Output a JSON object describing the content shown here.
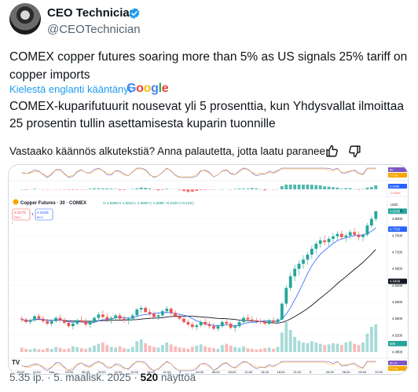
{
  "author": {
    "name": "CEO Technician",
    "handle": "@CEOTechnician"
  },
  "tweet": {
    "text": "COMEX copper futures soaring more than 5% as US signals 25% tariff on copper imports",
    "translated_label": "Kielestä englanti kääntänyt",
    "translator": "Google",
    "translation": "COMEX-kuparifutuurit nousevat yli 5 prosenttia, kun Yhdysvallat ilmoittaa 25 prosentin tullin asettamisesta kuparin tuonnille",
    "feedback_prompt": "Vastaako käännös alkutekstiä? Anna palautetta, jotta laatu paranee:"
  },
  "footer": {
    "time": "5.35 ip.",
    "sep1": " · ",
    "date": "5. maalisk. 2025",
    "sep2": " · ",
    "views": "520",
    "views_label": " näyttöä"
  },
  "icons": {
    "verified": "verified-badge-icon",
    "thumb_up": "thumbs-up-icon",
    "thumb_down": "thumbs-down-icon",
    "tradingview": "tradingview-logo"
  },
  "colors": {
    "link": "#1d9bf0",
    "bull": "#26a69a",
    "bear": "#ef5350",
    "ma_fast": "#2962ff",
    "ma_slow": "#131722"
  },
  "chart": {
    "symbol_title": "Copper Futures · 30 · COMEX",
    "ohlc": "O 4.5865  H 4.5910  L 4.5860  C 4.5885  +0.0100 (+0.21%)",
    "sell_price": "4.8175",
    "sell_label": "SELL",
    "buy_price": "4.8185",
    "buy_label": "BUY",
    "qty": "1",
    "currency": "USD",
    "scale_mode": "lb",
    "price_ticks": [
      "4.8000",
      "4.7600",
      "4.7200",
      "4.6800",
      "4.6400",
      "4.6000",
      "4.5600",
      "4.5200",
      "4.4800"
    ],
    "last_price_tag": "4.8185",
    "ma_fast_tag": "4.7753",
    "ma_slow_tag": "4.6499",
    "volume_tag": "688",
    "top_indicator_tags": [
      "80",
      "77.06"
    ],
    "macd_tags": [
      "0.0458",
      "-0.0005"
    ],
    "bottom_indicator_tags": [
      "80.31",
      "77.09"
    ],
    "time_labels": [
      "18:00",
      "21:00",
      "Mar",
      "03:00",
      "06:00",
      "09:00",
      "12:00",
      "15:00",
      "18:00",
      "21:00",
      "4",
      "03:00",
      "06:00",
      "09:00",
      "12:00",
      "15:00",
      "18:00",
      "21:00",
      "5",
      "03:00",
      "06:00",
      "09:00",
      "12:00"
    ]
  },
  "chart_data": {
    "type": "candlestick",
    "title": "Copper Futures · 30 · COMEX",
    "ylabel": "USD",
    "ylim": [
      4.48,
      4.82
    ],
    "candles": [
      [
        4.56,
        4.566,
        4.552,
        4.558
      ],
      [
        4.558,
        4.562,
        4.548,
        4.552
      ],
      [
        4.552,
        4.56,
        4.546,
        4.556
      ],
      [
        4.556,
        4.57,
        4.552,
        4.566
      ],
      [
        4.566,
        4.572,
        4.556,
        4.56
      ],
      [
        4.56,
        4.566,
        4.55,
        4.554
      ],
      [
        4.554,
        4.56,
        4.544,
        4.548
      ],
      [
        4.548,
        4.558,
        4.542,
        4.554
      ],
      [
        4.554,
        4.566,
        4.55,
        4.562
      ],
      [
        4.562,
        4.57,
        4.552,
        4.556
      ],
      [
        4.556,
        4.562,
        4.546,
        4.55
      ],
      [
        4.55,
        4.556,
        4.538,
        4.542
      ],
      [
        4.542,
        4.552,
        4.534,
        4.548
      ],
      [
        4.548,
        4.56,
        4.544,
        4.556
      ],
      [
        4.556,
        4.566,
        4.548,
        4.552
      ],
      [
        4.552,
        4.56,
        4.54,
        4.546
      ],
      [
        4.546,
        4.556,
        4.538,
        4.552
      ],
      [
        4.552,
        4.566,
        4.548,
        4.562
      ],
      [
        4.562,
        4.576,
        4.556,
        4.57
      ],
      [
        4.57,
        4.58,
        4.56,
        4.564
      ],
      [
        4.564,
        4.572,
        4.552,
        4.558
      ],
      [
        4.558,
        4.566,
        4.548,
        4.562
      ],
      [
        4.562,
        4.572,
        4.556,
        4.568
      ],
      [
        4.568,
        4.574,
        4.556,
        4.56
      ],
      [
        4.56,
        4.568,
        4.55,
        4.556
      ],
      [
        4.556,
        4.564,
        4.546,
        4.56
      ],
      [
        4.56,
        4.572,
        4.556,
        4.568
      ],
      [
        4.568,
        4.586,
        4.564,
        4.582
      ],
      [
        4.582,
        4.592,
        4.574,
        4.586
      ],
      [
        4.586,
        4.59,
        4.572,
        4.576
      ],
      [
        4.576,
        4.584,
        4.566,
        4.572
      ],
      [
        4.572,
        4.578,
        4.56,
        4.564
      ],
      [
        4.564,
        4.572,
        4.556,
        4.568
      ],
      [
        4.568,
        4.582,
        4.564,
        4.578
      ],
      [
        4.578,
        4.59,
        4.572,
        4.584
      ],
      [
        4.584,
        4.588,
        4.57,
        4.574
      ],
      [
        4.574,
        4.58,
        4.562,
        4.566
      ],
      [
        4.566,
        4.572,
        4.556,
        4.56
      ],
      [
        4.56,
        4.566,
        4.548,
        4.552
      ],
      [
        4.552,
        4.558,
        4.542,
        4.546
      ],
      [
        4.546,
        4.552,
        4.534,
        4.54
      ],
      [
        4.54,
        4.548,
        4.532,
        4.544
      ],
      [
        4.544,
        4.556,
        4.54,
        4.552
      ],
      [
        4.552,
        4.56,
        4.542,
        4.546
      ],
      [
        4.546,
        4.554,
        4.536,
        4.542
      ],
      [
        4.542,
        4.55,
        4.532,
        4.536
      ],
      [
        4.536,
        4.546,
        4.53,
        4.542
      ],
      [
        4.542,
        4.556,
        4.538,
        4.552
      ],
      [
        4.552,
        4.56,
        4.544,
        4.548
      ],
      [
        4.548,
        4.552,
        4.534,
        4.538
      ],
      [
        4.538,
        4.546,
        4.528,
        4.542
      ],
      [
        4.542,
        4.556,
        4.538,
        4.552
      ],
      [
        4.552,
        4.566,
        4.548,
        4.562
      ],
      [
        4.562,
        4.57,
        4.554,
        4.558
      ],
      [
        4.558,
        4.566,
        4.55,
        4.556
      ],
      [
        4.556,
        4.562,
        4.548,
        4.554
      ],
      [
        4.554,
        4.56,
        4.546,
        4.552
      ],
      [
        4.552,
        4.558,
        4.544,
        4.548
      ],
      [
        4.548,
        4.56,
        4.544,
        4.556
      ],
      [
        4.556,
        4.564,
        4.548,
        4.552
      ],
      [
        4.552,
        4.562,
        4.546,
        4.558
      ],
      [
        4.558,
        4.6,
        4.556,
        4.596
      ],
      [
        4.596,
        4.64,
        4.59,
        4.634
      ],
      [
        4.634,
        4.67,
        4.626,
        4.662
      ],
      [
        4.662,
        4.69,
        4.65,
        4.68
      ],
      [
        4.68,
        4.7,
        4.664,
        4.692
      ],
      [
        4.692,
        4.712,
        4.68,
        4.702
      ],
      [
        4.702,
        4.72,
        4.69,
        4.714
      ],
      [
        4.714,
        4.736,
        4.704,
        4.728
      ],
      [
        4.728,
        4.746,
        4.716,
        4.74
      ],
      [
        4.74,
        4.756,
        4.73,
        4.748
      ],
      [
        4.748,
        4.76,
        4.736,
        4.744
      ],
      [
        4.744,
        4.758,
        4.734,
        4.752
      ],
      [
        4.752,
        4.766,
        4.742,
        4.758
      ],
      [
        4.758,
        4.77,
        4.748,
        4.764
      ],
      [
        4.764,
        4.772,
        4.75,
        4.756
      ],
      [
        4.756,
        4.766,
        4.744,
        4.76
      ],
      [
        4.76,
        4.774,
        4.752,
        4.768
      ],
      [
        4.768,
        4.778,
        4.756,
        4.762
      ],
      [
        4.762,
        4.77,
        4.748,
        4.756
      ],
      [
        4.756,
        4.766,
        4.746,
        4.762
      ],
      [
        4.762,
        4.79,
        4.758,
        4.784
      ],
      [
        4.784,
        4.806,
        4.778,
        4.8
      ],
      [
        4.8,
        4.816,
        4.794,
        4.8185
      ]
    ],
    "volume": [
      0.14,
      0.1,
      0.08,
      0.11,
      0.09,
      0.07,
      0.12,
      0.1,
      0.16,
      0.13,
      0.09,
      0.11,
      0.18,
      0.15,
      0.12,
      0.1,
      0.14,
      0.2,
      0.26,
      0.3,
      0.22,
      0.16,
      0.14,
      0.18,
      0.12,
      0.1,
      0.16,
      0.34,
      0.4,
      0.28,
      0.2,
      0.16,
      0.14,
      0.22,
      0.3,
      0.24,
      0.18,
      0.14,
      0.12,
      0.1,
      0.16,
      0.2,
      0.24,
      0.18,
      0.14,
      0.12,
      0.1,
      0.22,
      0.26,
      0.2,
      0.16,
      0.14,
      0.18,
      0.12,
      0.1,
      0.08,
      0.1,
      0.12,
      0.14,
      0.1,
      0.16,
      0.62,
      0.95,
      0.7,
      0.48,
      0.36,
      0.3,
      0.28,
      0.34,
      0.3,
      0.26,
      0.22,
      0.24,
      0.28,
      0.26,
      0.22,
      0.3,
      0.34,
      0.26,
      0.22,
      0.3,
      0.58,
      0.8,
      0.88
    ]
  }
}
